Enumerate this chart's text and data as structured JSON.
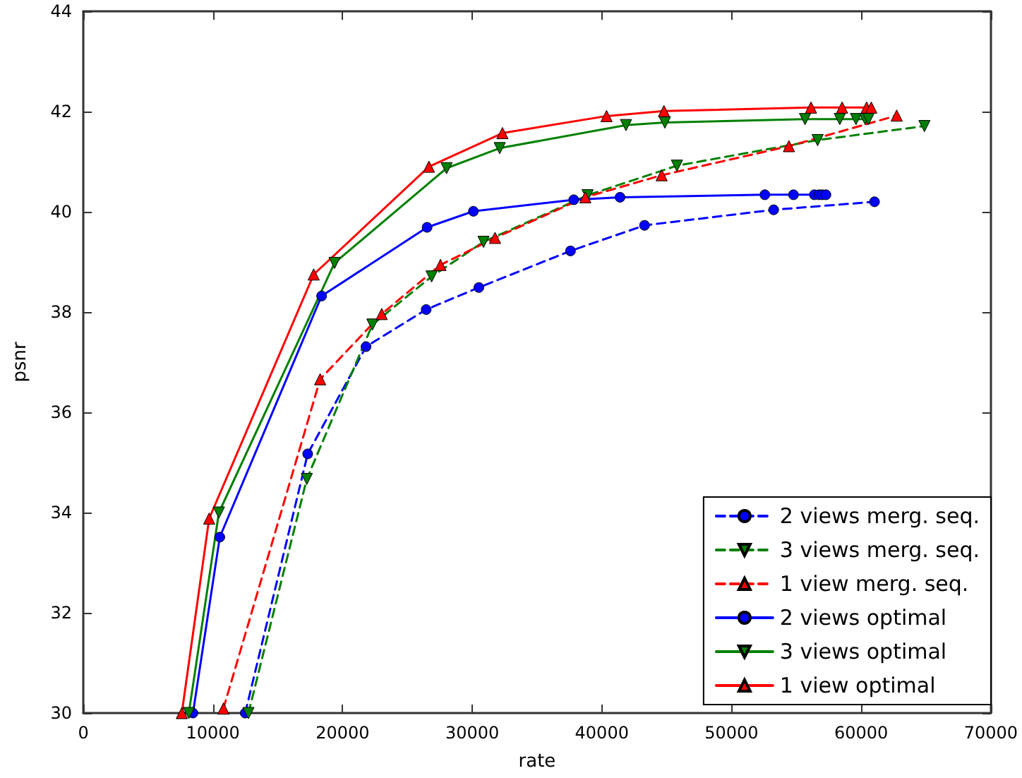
{
  "chart_data": {
    "type": "line",
    "xlabel": "rate",
    "ylabel": "psnr",
    "xlim": [
      0,
      70000
    ],
    "xticks": [
      0,
      10000,
      20000,
      30000,
      40000,
      50000,
      60000,
      70000
    ],
    "ylim": [
      30,
      44
    ],
    "yticks": [
      30,
      32,
      34,
      36,
      38,
      40,
      42,
      44
    ],
    "grid": false,
    "legend": "bottom right",
    "series": [
      {
        "name": "2 views merg. seq.",
        "color": "#0000ff",
        "marker": "circle",
        "line_style": "dashed",
        "x": [
          12490,
          17310,
          21810,
          26450,
          30510,
          37580,
          43290,
          53250,
          61030
        ],
        "values": [
          30,
          35.17,
          37.31,
          38.05,
          38.49,
          39.22,
          39.73,
          40.04,
          40.2
        ]
      },
      {
        "name": "3 views merg. seq.",
        "color": "#008000",
        "marker": "triangle-down",
        "line_style": "dashed",
        "x": [
          12740,
          17240,
          22300,
          26870,
          30870,
          38900,
          45790,
          56640,
          64880
        ],
        "values": [
          30,
          34.67,
          37.75,
          38.71,
          39.4,
          40.33,
          40.92,
          41.43,
          41.71
        ]
      },
      {
        "name": "1 view merg. seq.",
        "color": "#ff0000",
        "marker": "triangle",
        "line_style": "dashed",
        "x": [
          10810,
          18270,
          23020,
          27550,
          31760,
          38720,
          44610,
          54430,
          62740
        ],
        "values": [
          30.09,
          36.66,
          37.96,
          38.94,
          39.48,
          40.29,
          40.73,
          41.31,
          41.92
        ]
      },
      {
        "name": "2 views optimal",
        "color": "#0000ff",
        "marker": "circle",
        "line_style": "solid",
        "x": [
          8460,
          10530,
          18380,
          26520,
          30090,
          37830,
          41400,
          52570,
          54780,
          56390,
          56750,
          57000,
          57280
        ],
        "values": [
          30,
          33.51,
          38.32,
          39.69,
          40.01,
          40.24,
          40.29,
          40.34,
          40.34,
          40.34,
          40.34,
          40.34,
          40.34
        ]
      },
      {
        "name": "3 views optimal",
        "color": "#008000",
        "marker": "triangle-down",
        "line_style": "solid",
        "x": [
          8140,
          10460,
          19380,
          28020,
          32120,
          41860,
          44860,
          55670,
          58350,
          59600,
          60310,
          60560
        ],
        "values": [
          30,
          34,
          38.98,
          40.87,
          41.27,
          41.73,
          41.78,
          41.85,
          41.85,
          41.85,
          41.85,
          41.85
        ]
      },
      {
        "name": "1 view optimal",
        "color": "#ff0000",
        "marker": "triangle",
        "line_style": "solid",
        "x": [
          7600,
          9710,
          17770,
          26660,
          32330,
          40360,
          44790,
          56130,
          58530,
          60420,
          60780
        ],
        "values": [
          30,
          33.88,
          38.75,
          40.9,
          41.57,
          41.91,
          42.01,
          42.08,
          42.08,
          42.08,
          42.08
        ]
      }
    ]
  }
}
